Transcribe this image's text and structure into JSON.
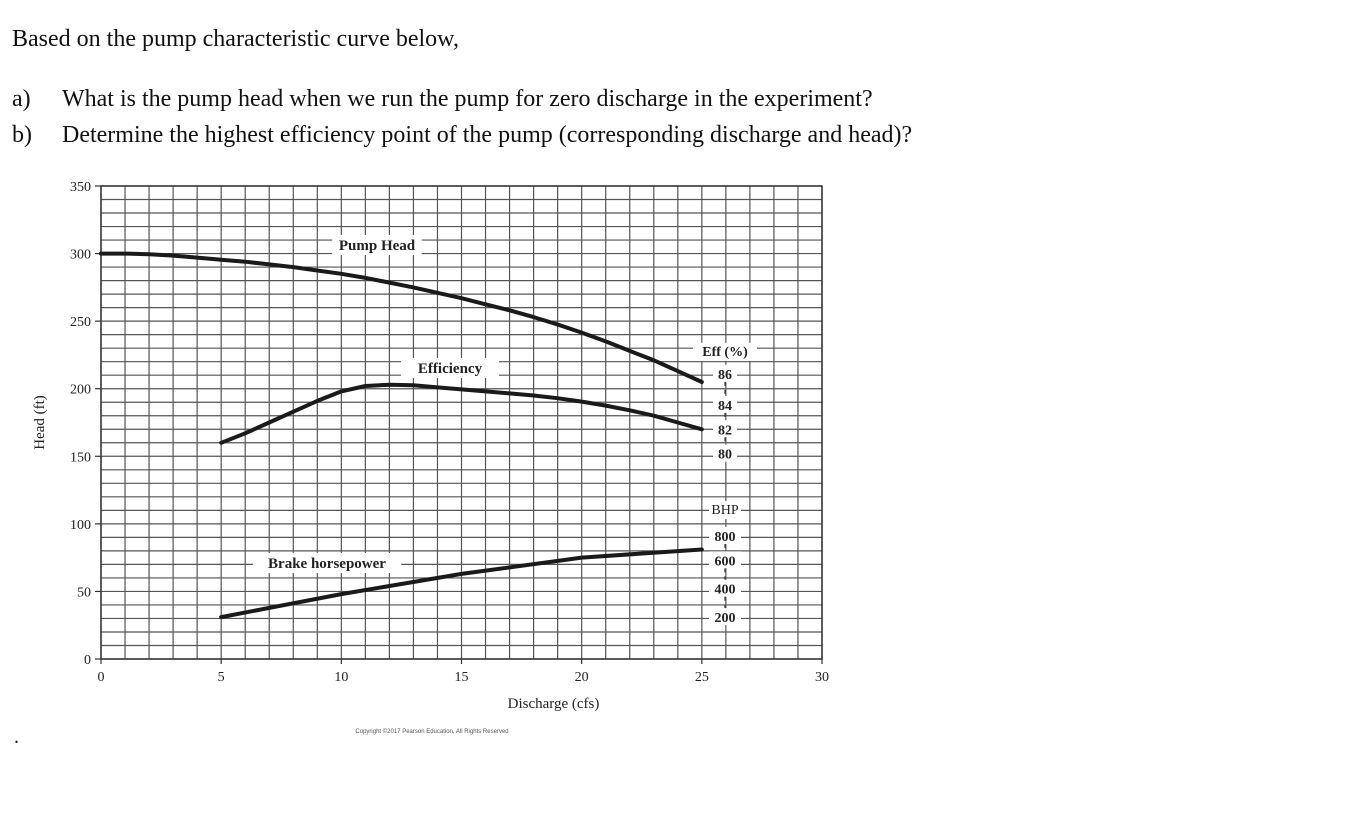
{
  "question": {
    "intro": "Based on the pump characteristic curve below,",
    "items": [
      {
        "letter": "a)",
        "text": "What is the pump head when we run the pump for zero discharge in the experiment?"
      },
      {
        "letter": "b)",
        "text": "Determine the highest efficiency point of the pump (corresponding discharge and head)?"
      }
    ],
    "trailing_mark": "."
  },
  "chart_data": {
    "type": "line",
    "title": "",
    "xlabel": "Discharge (cfs)",
    "ylabel": "Head (ft)",
    "xlim": [
      0,
      30
    ],
    "ylim": [
      0,
      350
    ],
    "x_ticks": [
      0,
      5,
      10,
      15,
      20,
      25,
      30
    ],
    "y_ticks": [
      0,
      50,
      100,
      150,
      200,
      250,
      300,
      350
    ],
    "grid": {
      "on": true,
      "x_minor_step": 1,
      "y_minor_step": 10
    },
    "series": [
      {
        "name": "Pump Head",
        "axis": "Head (ft)",
        "x": [
          0,
          1,
          2,
          3,
          4,
          5,
          6,
          7,
          8,
          9,
          10,
          11,
          12,
          13,
          14,
          15,
          16,
          17,
          18,
          19,
          20,
          21,
          22,
          23,
          24,
          25
        ],
        "values": [
          300,
          300,
          299.5,
          298.5,
          297,
          295.5,
          294,
          292,
          290,
          287.5,
          285,
          282,
          278.5,
          275,
          271,
          267,
          262.5,
          258,
          253,
          247.5,
          241.5,
          235,
          228,
          221,
          213,
          205
        ]
      },
      {
        "name": "Efficiency",
        "axis": "Eff (%)",
        "x": [
          5,
          6,
          7,
          8,
          9,
          10,
          11,
          12,
          13,
          14,
          15,
          16,
          17,
          18,
          19,
          20,
          21,
          22,
          23,
          24,
          25
        ],
        "values_on_head_scale": [
          160,
          167,
          175,
          183,
          191,
          198,
          202,
          203,
          202.5,
          201,
          199.5,
          198,
          196.5,
          195,
          193,
          190.5,
          187.5,
          184,
          180,
          175,
          170
        ],
        "values": [
          81.2,
          81.9,
          82.7,
          83.5,
          84.4,
          85.1,
          85.6,
          85.7,
          85.6,
          85.5,
          85.3,
          85.1,
          85.0,
          84.8,
          84.6,
          84.3,
          84.0,
          83.6,
          83.2,
          82.5,
          82.0
        ]
      },
      {
        "name": "Brake horsepower",
        "axis": "BHP",
        "x": [
          5,
          10,
          15,
          20,
          25
        ],
        "values_on_head_scale": [
          31,
          48,
          63,
          75,
          81
        ],
        "values": [
          240,
          440,
          570,
          670,
          720
        ]
      }
    ],
    "secondary_scales": [
      {
        "label": "Eff (%)",
        "ticks": [
          86,
          84,
          82,
          80
        ],
        "tick_head_positions": [
          211,
          188,
          170,
          152
        ],
        "x_position": 25
      },
      {
        "label": "BHP",
        "ticks": [
          800,
          600,
          400,
          200
        ],
        "tick_head_positions": [
          91,
          73,
          52,
          31
        ],
        "x_position": 25
      }
    ],
    "annotations": [
      "Pump Head",
      "Efficiency",
      "Brake horsepower"
    ],
    "copyright": "Copyright ©2017 Pearson Education, All Rights Reserved"
  }
}
